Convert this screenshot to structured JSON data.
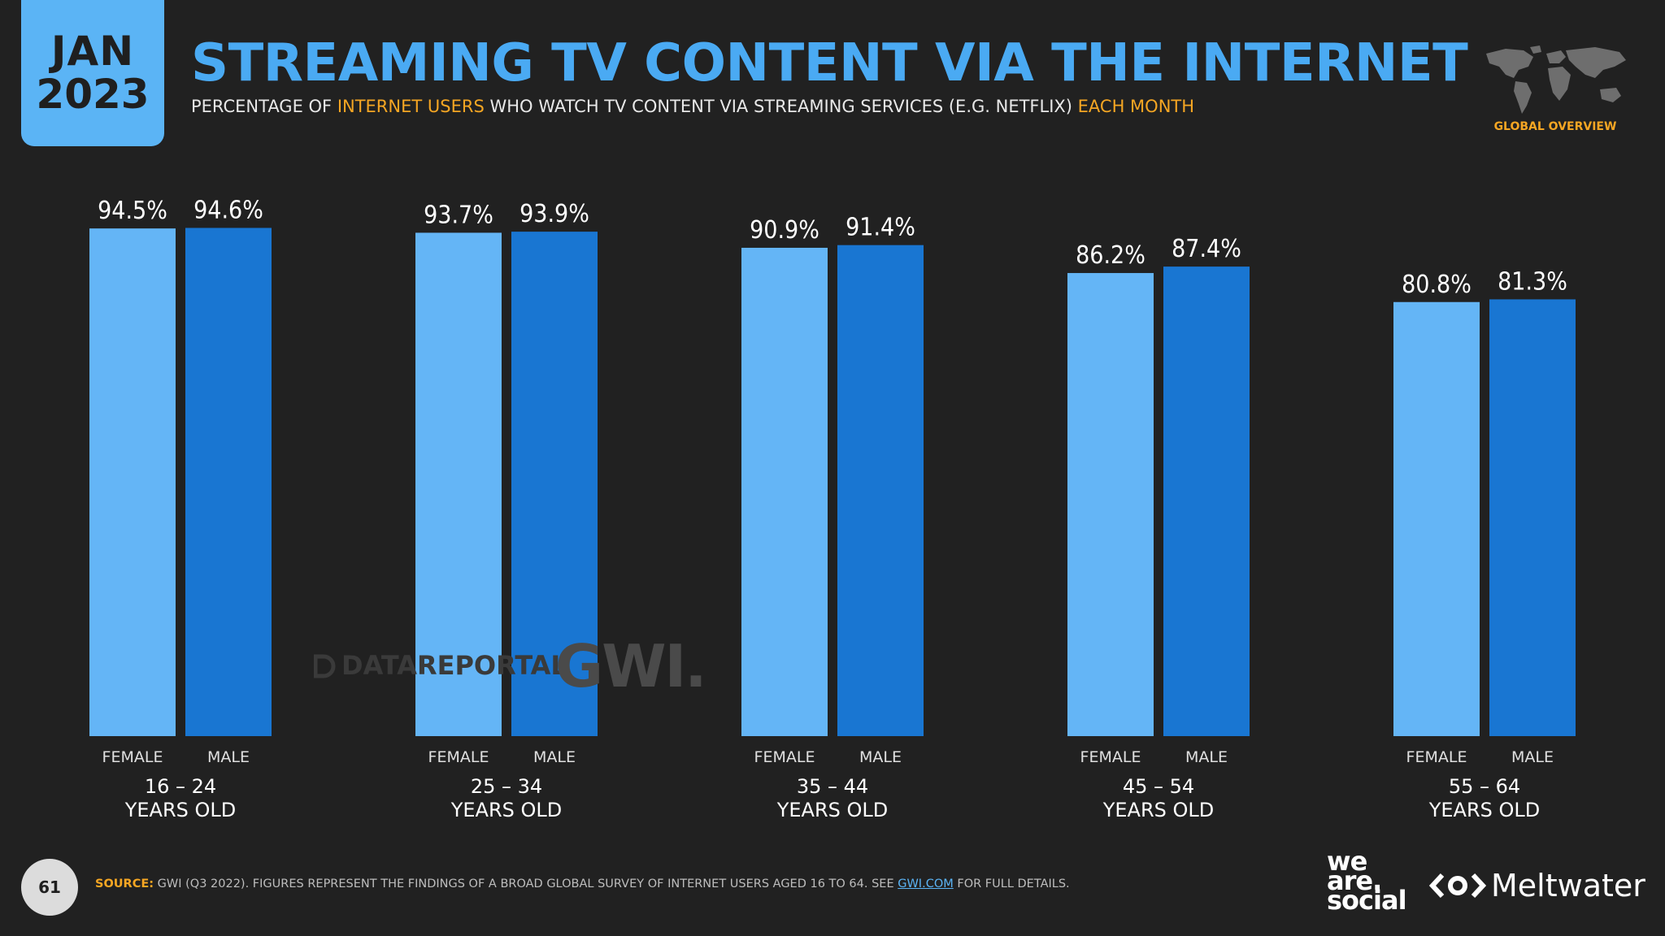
{
  "header": {
    "month": "JAN",
    "year": "2023",
    "title": "STREAMING TV CONTENT VIA THE INTERNET",
    "subtitle_part1": "PERCENTAGE OF ",
    "subtitle_hl1": "INTERNET USERS",
    "subtitle_part2": " WHO WATCH TV CONTENT VIA STREAMING SERVICES (E.G. NETFLIX) ",
    "subtitle_hl2": "EACH MONTH",
    "overview_label": "GLOBAL OVERVIEW"
  },
  "colors": {
    "female": "#64b5f6",
    "male": "#1976d2",
    "accent": "#f5a623",
    "title": "#4aaaf3",
    "background": "#212121"
  },
  "chart_data": {
    "type": "bar",
    "title": "STREAMING TV CONTENT VIA THE INTERNET",
    "categories": [
      {
        "line1": "16 – 24",
        "line2": "YEARS OLD"
      },
      {
        "line1": "25 – 34",
        "line2": "YEARS OLD"
      },
      {
        "line1": "35 – 44",
        "line2": "YEARS OLD"
      },
      {
        "line1": "45 – 54",
        "line2": "YEARS OLD"
      },
      {
        "line1": "55 – 64",
        "line2": "YEARS OLD"
      }
    ],
    "series": [
      {
        "name": "FEMALE",
        "values": [
          94.5,
          93.7,
          90.9,
          86.2,
          80.8
        ]
      },
      {
        "name": "MALE",
        "values": [
          94.6,
          93.9,
          91.4,
          87.4,
          81.3
        ]
      }
    ],
    "value_suffix": "%",
    "ylim": [
      0,
      100
    ],
    "grid": false
  },
  "watermarks": {
    "datareportal": "DATAREPORTAL",
    "gwi": "GWI."
  },
  "footer": {
    "page_number": "61",
    "source_label": "SOURCE:",
    "source_text_1": " GWI (Q3 2022). FIGURES REPRESENT THE FINDINGS OF A BROAD GLOBAL SURVEY OF INTERNET USERS AGED 16 TO 64. SEE ",
    "source_link": "GWI.COM",
    "source_text_2": " FOR FULL DETAILS.",
    "brand_was": [
      "we",
      "are.",
      "social"
    ],
    "brand_meltwater": "Meltwater"
  }
}
